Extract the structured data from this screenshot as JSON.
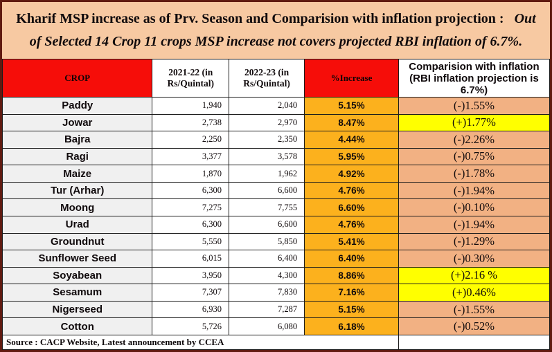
{
  "title": {
    "main": "Kharif MSP increase as of Prv. Season and Comparision with inflation projection :",
    "emphasis": "Out of Selected 14 Crop 11 crops MSP increase not covers projected RBI inflation of 6.7%."
  },
  "table": {
    "headers": {
      "crop": "CROP",
      "year_2021_22": "2021-22 (in Rs/Quintal)",
      "year_2022_23": "2022-23 (in Rs/Quintal)",
      "pct_increase": "%Increase",
      "inflation_comparison": "Comparision with inflation (RBI inflation projection is 6.7%)"
    },
    "rows": [
      {
        "crop": "Paddy",
        "msp_2021_22": "1,940",
        "msp_2022_23": "2,040",
        "pct_increase": "5.15%",
        "inflation_comparison": "(-)1.55%",
        "highlight": "peach"
      },
      {
        "crop": "Jowar",
        "msp_2021_22": "2,738",
        "msp_2022_23": "2,970",
        "pct_increase": "8.47%",
        "inflation_comparison": "(+)1.77%",
        "highlight": "yellow"
      },
      {
        "crop": "Bajra",
        "msp_2021_22": "2,250",
        "msp_2022_23": "2,350",
        "pct_increase": "4.44%",
        "inflation_comparison": "(-)2.26%",
        "highlight": "peach"
      },
      {
        "crop": "Ragi",
        "msp_2021_22": "3,377",
        "msp_2022_23": "3,578",
        "pct_increase": "5.95%",
        "inflation_comparison": "(-)0.75%",
        "highlight": "peach"
      },
      {
        "crop": "Maize",
        "msp_2021_22": "1,870",
        "msp_2022_23": "1,962",
        "pct_increase": "4.92%",
        "inflation_comparison": "(-)1.78%",
        "highlight": "peach"
      },
      {
        "crop": "Tur (Arhar)",
        "msp_2021_22": "6,300",
        "msp_2022_23": "6,600",
        "pct_increase": "4.76%",
        "inflation_comparison": "(-)1.94%",
        "highlight": "peach"
      },
      {
        "crop": "Moong",
        "msp_2021_22": "7,275",
        "msp_2022_23": "7,755",
        "pct_increase": "6.60%",
        "inflation_comparison": "(-)0.10%",
        "highlight": "peach"
      },
      {
        "crop": "Urad",
        "msp_2021_22": "6,300",
        "msp_2022_23": "6,600",
        "pct_increase": "4.76%",
        "inflation_comparison": "(-)1.94%",
        "highlight": "peach"
      },
      {
        "crop": "Groundnut",
        "msp_2021_22": "5,550",
        "msp_2022_23": "5,850",
        "pct_increase": "5.41%",
        "inflation_comparison": "(-)1.29%",
        "highlight": "peach"
      },
      {
        "crop": "Sunflower Seed",
        "msp_2021_22": "6,015",
        "msp_2022_23": "6,400",
        "pct_increase": "6.40%",
        "inflation_comparison": "(-)0.30%",
        "highlight": "peach"
      },
      {
        "crop": "Soyabean",
        "msp_2021_22": "3,950",
        "msp_2022_23": "4,300",
        "pct_increase": "8.86%",
        "inflation_comparison": "(+)2.16 %",
        "highlight": "yellow"
      },
      {
        "crop": "Sesamum",
        "msp_2021_22": "7,307",
        "msp_2022_23": "7,830",
        "pct_increase": "7.16%",
        "inflation_comparison": "(+)0.46%",
        "highlight": "yellow"
      },
      {
        "crop": "Nigerseed",
        "msp_2021_22": "6,930",
        "msp_2022_23": "7,287",
        "pct_increase": "5.15%",
        "inflation_comparison": "(-)1.55%",
        "highlight": "peach"
      },
      {
        "crop": "Cotton",
        "msp_2021_22": "5,726",
        "msp_2022_23": "6,080",
        "pct_increase": "6.18%",
        "inflation_comparison": "(-)0.52%",
        "highlight": "peach"
      }
    ]
  },
  "footer": {
    "source": "Source : CACP Website, Latest announcement by CCEA"
  },
  "colors": {
    "page_background": "#f7c9a2",
    "frame_border": "#601a10",
    "header_red": "#f60d09",
    "pct_increase_amber": "#fcb11d",
    "comparison_peach": "#f2b183",
    "comparison_positive_yellow": "#ffff00",
    "crop_cell_gray": "#f0f0f0"
  }
}
